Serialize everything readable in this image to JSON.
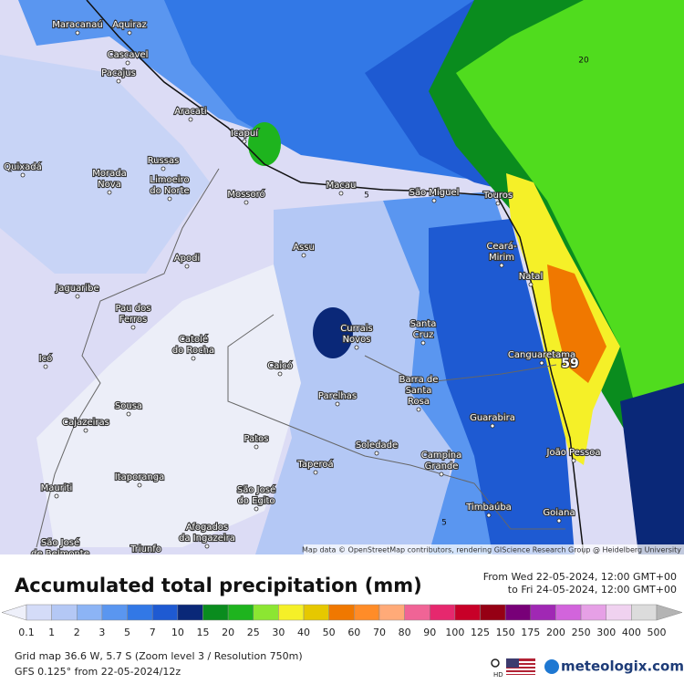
{
  "map": {
    "places": [
      {
        "lines": [
          "Maracanaú"
        ]
      },
      {
        "lines": [
          "Aquiraz"
        ]
      },
      {
        "lines": [
          "Cascavel"
        ]
      },
      {
        "lines": [
          "Pacajus"
        ]
      },
      {
        "lines": [
          "Aracati"
        ]
      },
      {
        "lines": [
          "Icapuí"
        ]
      },
      {
        "lines": [
          "Quixadá"
        ]
      },
      {
        "lines": [
          "Morada",
          "Nova"
        ]
      },
      {
        "lines": [
          "Russas"
        ]
      },
      {
        "lines": [
          "Limoeiro",
          "do Norte"
        ]
      },
      {
        "lines": [
          "Mossoró"
        ]
      },
      {
        "lines": [
          "Macau"
        ]
      },
      {
        "lines": [
          "São Miguel"
        ]
      },
      {
        "lines": [
          "Touros"
        ]
      },
      {
        "lines": [
          "Ceará-",
          "Mirim"
        ]
      },
      {
        "lines": [
          "Natal"
        ]
      },
      {
        "lines": [
          "Assu"
        ]
      },
      {
        "lines": [
          "Apodi"
        ]
      },
      {
        "lines": [
          "Jaguaribe"
        ]
      },
      {
        "lines": [
          "Pau dos",
          "Ferros"
        ]
      },
      {
        "lines": [
          "Catolé",
          "do Rocha"
        ]
      },
      {
        "lines": [
          "Currais",
          "Novos"
        ]
      },
      {
        "lines": [
          "Santa",
          "Cruz"
        ]
      },
      {
        "lines": [
          "Canguaretama"
        ]
      },
      {
        "lines": [
          "Icó"
        ]
      },
      {
        "lines": [
          "Caicó"
        ]
      },
      {
        "lines": [
          "Barra de",
          "Santa",
          "Rosa"
        ]
      },
      {
        "lines": [
          "Parelhas"
        ]
      },
      {
        "lines": [
          "Sousa"
        ]
      },
      {
        "lines": [
          "Cajazeiras"
        ]
      },
      {
        "lines": [
          "Guarabira"
        ]
      },
      {
        "lines": [
          "Patos"
        ]
      },
      {
        "lines": [
          "Soledade"
        ]
      },
      {
        "lines": [
          "João Pessoa"
        ]
      },
      {
        "lines": [
          "Campina",
          "Grande"
        ]
      },
      {
        "lines": [
          "Taperoá"
        ]
      },
      {
        "lines": [
          "Mauriti"
        ]
      },
      {
        "lines": [
          "Itaporanga"
        ]
      },
      {
        "lines": [
          "São José",
          "do Egito"
        ]
      },
      {
        "lines": [
          "Afogados",
          "da Ingazeira"
        ]
      },
      {
        "lines": [
          "Timbaúba"
        ]
      },
      {
        "lines": [
          "Goiana"
        ]
      },
      {
        "lines": [
          "São José",
          "de Belmonte"
        ]
      },
      {
        "lines": [
          "Triunfo"
        ]
      }
    ],
    "contour_labels": [
      "20",
      "5",
      "59",
      "5"
    ],
    "attribution": "Map data © OpenStreetMap contributors, rendering GIScience Research Group @ Heidelberg University"
  },
  "legend": {
    "title": "Accumulated total precipitation (mm)",
    "period": [
      "From Wed 22-05-2024, 12:00 GMT+00",
      "to Fri 24-05-2024, 12:00 GMT+00"
    ],
    "scale": {
      "labels": [
        0.1,
        1,
        2,
        3,
        5,
        7,
        10,
        15,
        20,
        25,
        30,
        40,
        50,
        60,
        70,
        80,
        90,
        100,
        125,
        150,
        175,
        200,
        250,
        300,
        400,
        500
      ],
      "colors": [
        "#eef0fa",
        "#d4dcf8",
        "#b4c8f5",
        "#8cb4f5",
        "#5a96f0",
        "#3278e6",
        "#1e5ad2",
        "#0a2878",
        "#0a8c1e",
        "#1eb41e",
        "#8ce632",
        "#f5f028",
        "#e6c800",
        "#f07800",
        "#ff8c28",
        "#ffaa78",
        "#f06496",
        "#e6286e",
        "#c80028",
        "#960014",
        "#780078",
        "#a028b4",
        "#d264dc",
        "#e6a0e6",
        "#f0d2f0",
        "#dcdcdc",
        "#b4b4b4"
      ]
    }
  },
  "footer": {
    "grid": "Grid map 36.6 W, 5.7 S (Zoom level 3 / Resolution 750m)",
    "model": "GFS 0.125° from 22-05-2024/12z",
    "hd": "HD",
    "brand": "meteologix.com"
  }
}
